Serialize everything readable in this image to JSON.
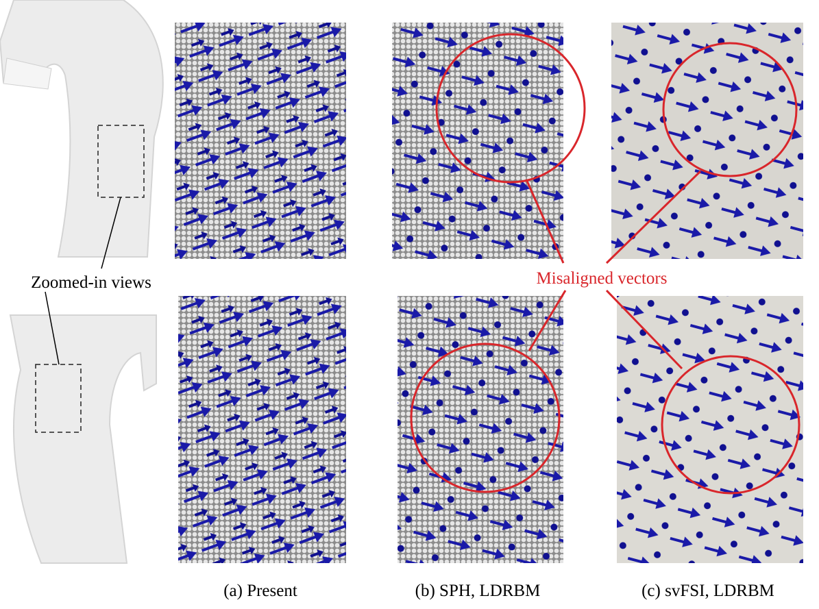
{
  "annotations": {
    "zoom": "Zoomed-in views",
    "misaligned": "Misaligned vectors"
  },
  "captions": [
    "(a) Present",
    "(b) SPH, LDRBM",
    "(c) svFSI, LDRBM"
  ]
}
